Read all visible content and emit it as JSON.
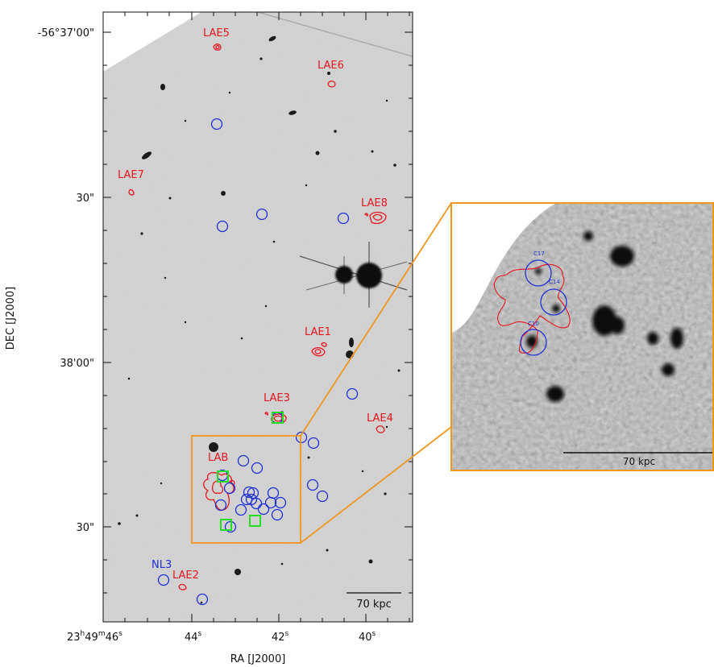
{
  "main_panel": {
    "axes": {
      "xlabel": "RA [J2000]",
      "ylabel": "DEC [J2000]",
      "x_ticks": [
        {
          "pre": "23",
          "sup1": "h",
          "mid": "49",
          "sup2": "m",
          "post": "46",
          "sup3": "s"
        },
        {
          "pre": "44",
          "sup3": "s"
        },
        {
          "pre": "42",
          "sup3": "s"
        },
        {
          "pre": "40",
          "sup3": "s"
        }
      ],
      "y_ticks": [
        "-56°37'00\"",
        "30\"",
        "38'00\"",
        "30\""
      ]
    },
    "labels": {
      "lae5": "LAE5",
      "lae6": "LAE6",
      "lae7": "LAE7",
      "lae8": "LAE8",
      "lae1": "LAE1",
      "lae3": "LAE3",
      "lae4": "LAE4",
      "lab": "LAB",
      "lae2": "LAE2",
      "nl3": "NL3"
    },
    "scale_bar": "70 kpc"
  },
  "inset": {
    "labels": {
      "c17": "C17",
      "c14": "C14",
      "c10": "C10"
    },
    "scale_bar": "70 kpc"
  },
  "colors": {
    "contour": "#e8141e",
    "circle": "#1f2fd8",
    "square": "#22dd22",
    "zoom_box": "#f0961e",
    "background": "#d4d4d4"
  }
}
